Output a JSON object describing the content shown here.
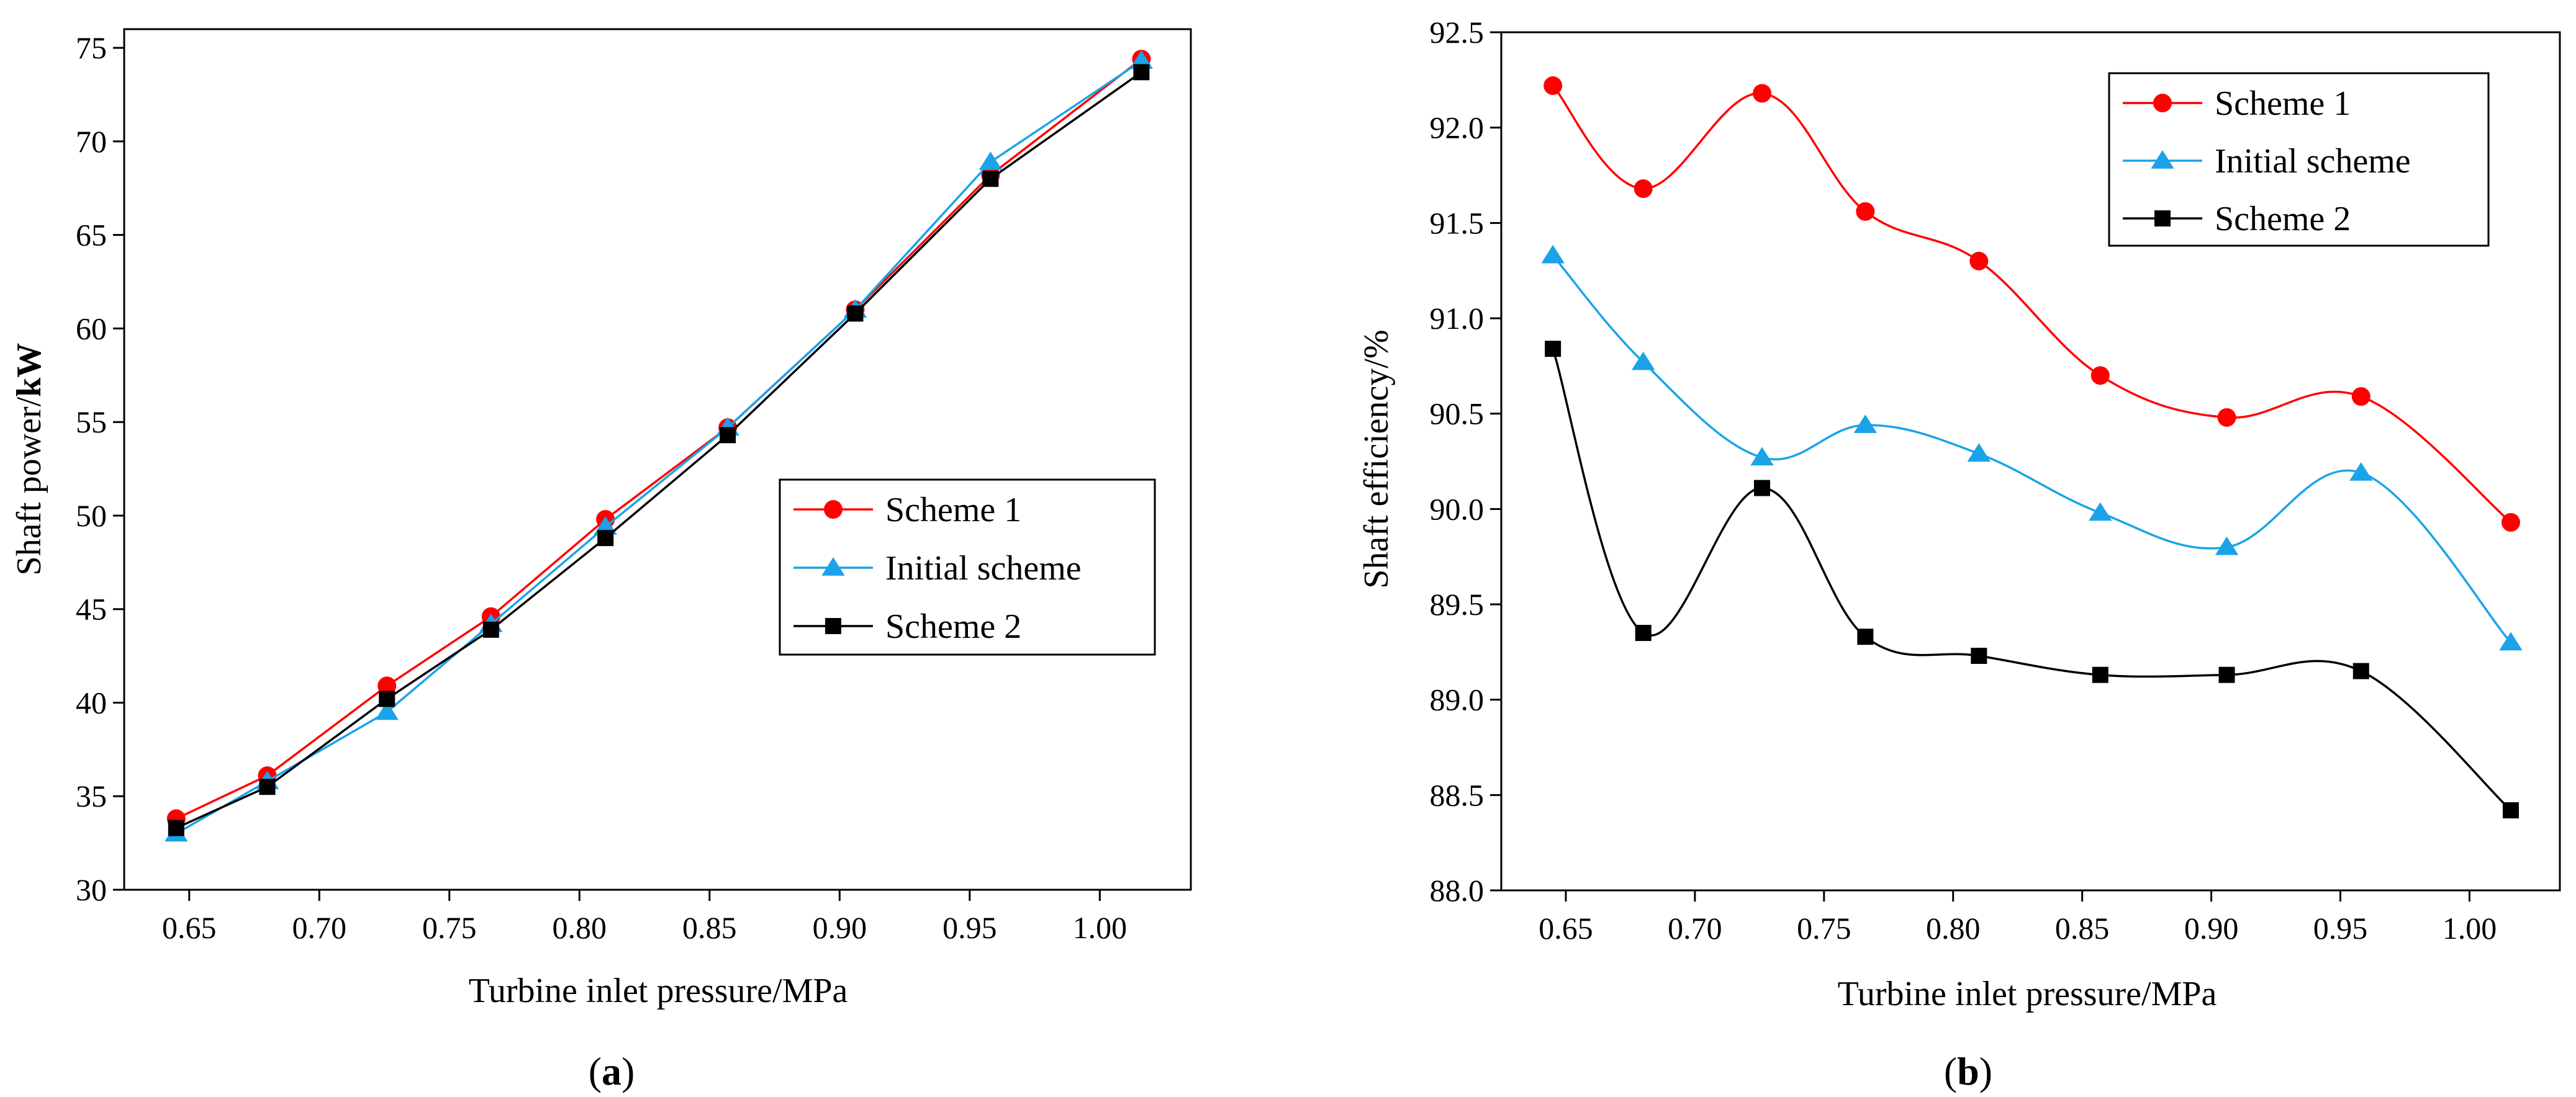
{
  "chart_data": [
    {
      "type": "line",
      "panel_label": "a",
      "xlabel": "Turbine inlet pressure/MPa",
      "ylabel_prefix": "Shaft power/",
      "ylabel_unit": "kW",
      "xlim": [
        0.625,
        1.035
      ],
      "ylim": [
        30,
        76
      ],
      "xticks": [
        "0.65",
        "0.70",
        "0.75",
        "0.80",
        "0.85",
        "0.90",
        "0.95",
        "1.00"
      ],
      "xtick_values": [
        0.65,
        0.7,
        0.75,
        0.8,
        0.85,
        0.9,
        0.95,
        1.0
      ],
      "yticks": [
        "30",
        "35",
        "40",
        "45",
        "50",
        "55",
        "60",
        "65",
        "70",
        "75"
      ],
      "ytick_values": [
        30,
        35,
        40,
        45,
        50,
        55,
        60,
        65,
        70,
        75
      ],
      "legend_position": "center-right",
      "x": [
        0.645,
        0.68,
        0.726,
        0.766,
        0.81,
        0.857,
        0.906,
        0.958,
        1.016
      ],
      "series": [
        {
          "name": "Scheme 1",
          "color": "#ff0000",
          "marker": "circle",
          "smooth": false,
          "values": [
            33.8,
            36.1,
            40.9,
            44.6,
            49.8,
            54.7,
            61.0,
            68.2,
            74.4
          ]
        },
        {
          "name": "Initial scheme",
          "color": "#1aa3e8",
          "marker": "triangle",
          "smooth": false,
          "values": [
            33.0,
            35.8,
            39.5,
            44.2,
            49.4,
            54.7,
            61.0,
            68.9,
            74.3
          ]
        },
        {
          "name": "Scheme 2",
          "color": "#000000",
          "marker": "square",
          "smooth": false,
          "values": [
            33.3,
            35.5,
            40.2,
            43.9,
            48.8,
            54.3,
            60.8,
            68.0,
            73.7
          ]
        }
      ]
    },
    {
      "type": "line",
      "panel_label": "b",
      "xlabel": "Turbine inlet pressure/MPa",
      "ylabel": "Shaft efficiency/%",
      "xlim": [
        0.625,
        1.035
      ],
      "ylim": [
        88.0,
        92.5
      ],
      "xticks": [
        "0.65",
        "0.70",
        "0.75",
        "0.80",
        "0.85",
        "0.90",
        "0.95",
        "1.00"
      ],
      "xtick_values": [
        0.65,
        0.7,
        0.75,
        0.8,
        0.85,
        0.9,
        0.95,
        1.0
      ],
      "yticks": [
        "88.0",
        "88.5",
        "89.0",
        "89.5",
        "90.0",
        "90.5",
        "91.0",
        "91.5",
        "92.0",
        "92.5"
      ],
      "ytick_values": [
        88.0,
        88.5,
        89.0,
        89.5,
        90.0,
        90.5,
        91.0,
        91.5,
        92.0,
        92.5
      ],
      "legend_position": "top-right",
      "x": [
        0.645,
        0.68,
        0.726,
        0.766,
        0.81,
        0.857,
        0.906,
        0.958,
        1.016
      ],
      "series": [
        {
          "name": "Scheme 1",
          "color": "#ff0000",
          "marker": "circle",
          "smooth": true,
          "values": [
            92.22,
            91.68,
            92.18,
            91.56,
            91.3,
            90.7,
            90.48,
            90.59,
            89.93
          ]
        },
        {
          "name": "Initial scheme",
          "color": "#1aa3e8",
          "marker": "triangle",
          "smooth": true,
          "values": [
            91.33,
            90.77,
            90.27,
            90.44,
            90.29,
            89.98,
            89.8,
            90.19,
            89.3
          ]
        },
        {
          "name": "Scheme 2",
          "color": "#000000",
          "marker": "square",
          "smooth": true,
          "values": [
            90.84,
            89.35,
            90.11,
            89.33,
            89.23,
            89.13,
            89.13,
            89.15,
            88.42
          ]
        }
      ]
    }
  ]
}
